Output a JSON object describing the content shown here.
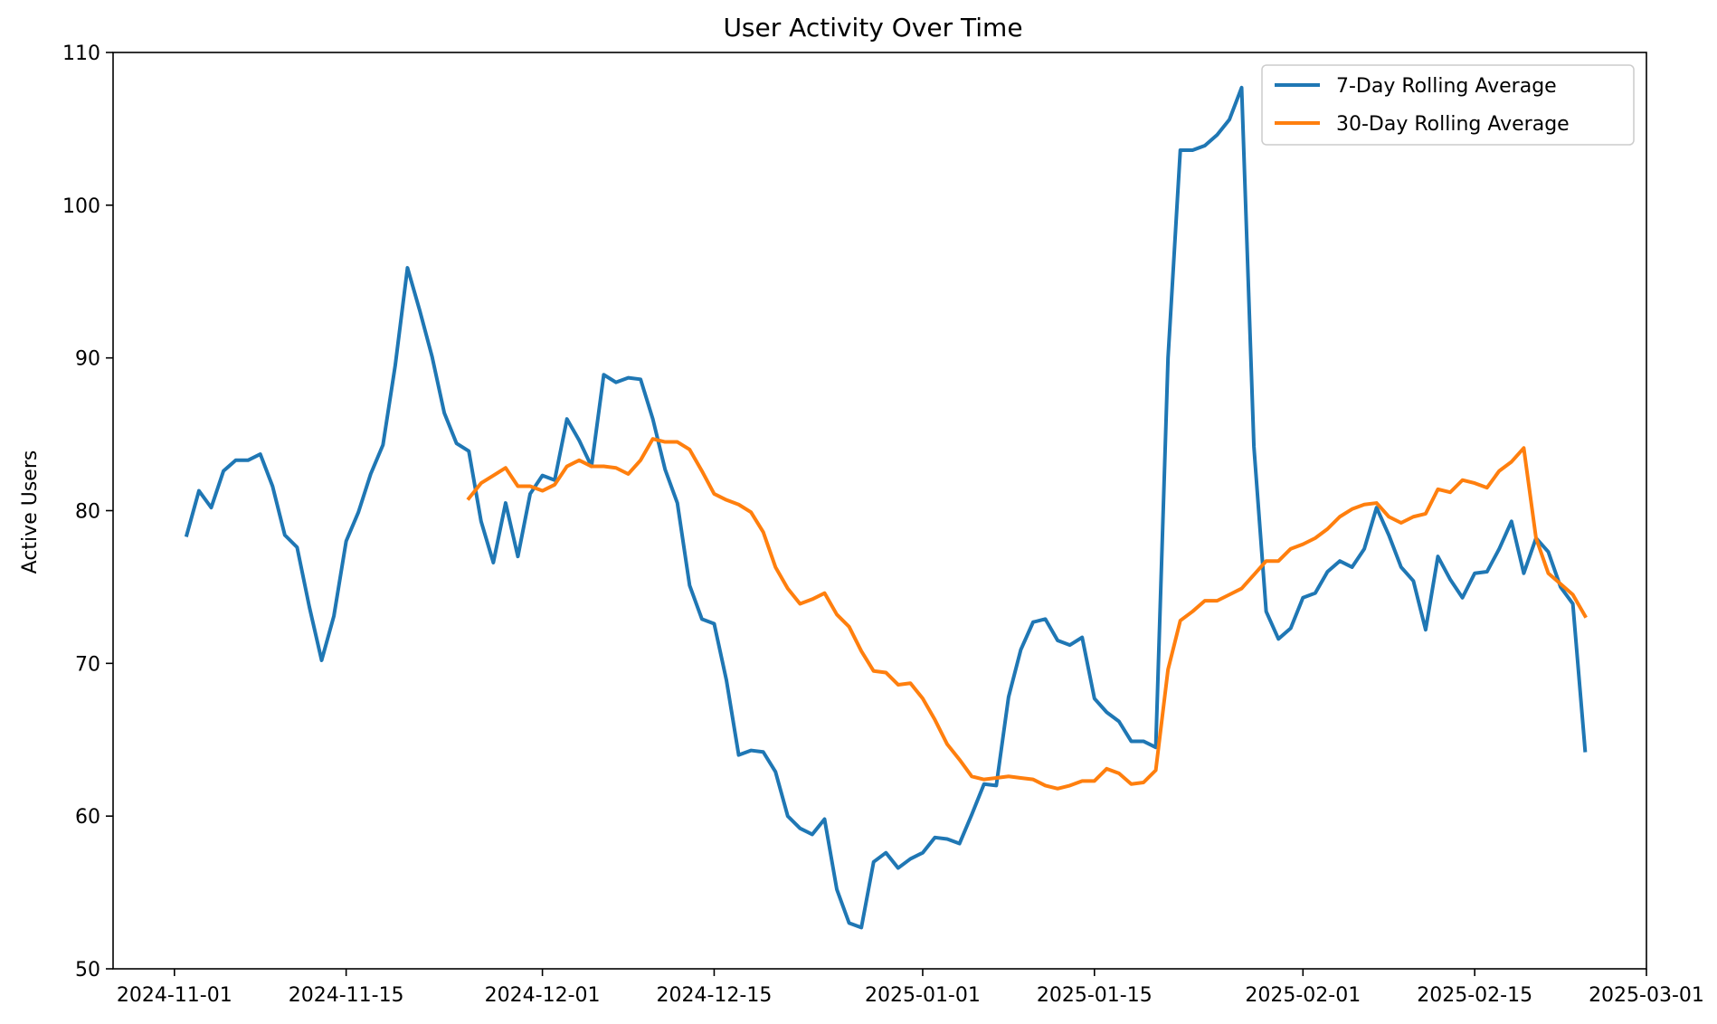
{
  "chart_data": {
    "type": "line",
    "title": "User Activity Over Time",
    "xlabel": "",
    "ylabel": "Active Users",
    "ylim": [
      50,
      110
    ],
    "xlim": [
      "2024-10-27",
      "2025-03-01"
    ],
    "yticks": [
      50,
      60,
      70,
      80,
      90,
      100,
      110
    ],
    "xticks": [
      "2024-11-01",
      "2024-11-15",
      "2024-12-01",
      "2024-12-15",
      "2025-01-01",
      "2025-01-15",
      "2025-02-01",
      "2025-02-15",
      "2025-03-01"
    ],
    "grid": false,
    "legend_position": "top-right",
    "series": [
      {
        "name": "7-Day Rolling Average",
        "color": "#1f77b4",
        "points": [
          [
            "2024-11-02",
            78.4
          ],
          [
            "2024-11-03",
            81.3
          ],
          [
            "2024-11-04",
            80.2
          ],
          [
            "2024-11-05",
            82.6
          ],
          [
            "2024-11-06",
            83.3
          ],
          [
            "2024-11-07",
            83.3
          ],
          [
            "2024-11-08",
            83.7
          ],
          [
            "2024-11-09",
            81.6
          ],
          [
            "2024-11-10",
            78.4
          ],
          [
            "2024-11-11",
            77.6
          ],
          [
            "2024-11-12",
            73.7
          ],
          [
            "2024-11-13",
            70.2
          ],
          [
            "2024-11-14",
            73.1
          ],
          [
            "2024-11-15",
            78.0
          ],
          [
            "2024-11-16",
            79.9
          ],
          [
            "2024-11-17",
            82.4
          ],
          [
            "2024-11-18",
            84.3
          ],
          [
            "2024-11-19",
            89.5
          ],
          [
            "2024-11-20",
            95.9
          ],
          [
            "2024-11-21",
            93.1
          ],
          [
            "2024-11-22",
            90.1
          ],
          [
            "2024-11-23",
            86.4
          ],
          [
            "2024-11-24",
            84.4
          ],
          [
            "2024-11-25",
            83.9
          ],
          [
            "2024-11-26",
            79.3
          ],
          [
            "2024-11-27",
            76.6
          ],
          [
            "2024-11-28",
            80.5
          ],
          [
            "2024-11-29",
            77.0
          ],
          [
            "2024-11-30",
            81.1
          ],
          [
            "2024-12-01",
            82.3
          ],
          [
            "2024-12-02",
            82.0
          ],
          [
            "2024-12-03",
            86.0
          ],
          [
            "2024-12-04",
            84.6
          ],
          [
            "2024-12-05",
            82.9
          ],
          [
            "2024-12-06",
            88.9
          ],
          [
            "2024-12-07",
            88.4
          ],
          [
            "2024-12-08",
            88.7
          ],
          [
            "2024-12-09",
            88.6
          ],
          [
            "2024-12-10",
            86.0
          ],
          [
            "2024-12-11",
            82.7
          ],
          [
            "2024-12-12",
            80.5
          ],
          [
            "2024-12-13",
            75.1
          ],
          [
            "2024-12-14",
            72.9
          ],
          [
            "2024-12-15",
            72.6
          ],
          [
            "2024-12-16",
            68.9
          ],
          [
            "2024-12-17",
            64.0
          ],
          [
            "2024-12-18",
            64.3
          ],
          [
            "2024-12-19",
            64.2
          ],
          [
            "2024-12-20",
            62.9
          ],
          [
            "2024-12-21",
            60.0
          ],
          [
            "2024-12-22",
            59.2
          ],
          [
            "2024-12-23",
            58.8
          ],
          [
            "2024-12-24",
            59.8
          ],
          [
            "2024-12-25",
            55.2
          ],
          [
            "2024-12-26",
            53.0
          ],
          [
            "2024-12-27",
            52.7
          ],
          [
            "2024-12-28",
            57.0
          ],
          [
            "2024-12-29",
            57.6
          ],
          [
            "2024-12-30",
            56.6
          ],
          [
            "2024-12-31",
            57.2
          ],
          [
            "2025-01-01",
            57.6
          ],
          [
            "2025-01-02",
            58.6
          ],
          [
            "2025-01-03",
            58.5
          ],
          [
            "2025-01-04",
            58.2
          ],
          [
            "2025-01-05",
            60.1
          ],
          [
            "2025-01-06",
            62.1
          ],
          [
            "2025-01-07",
            62.0
          ],
          [
            "2025-01-08",
            67.8
          ],
          [
            "2025-01-09",
            70.9
          ],
          [
            "2025-01-10",
            72.7
          ],
          [
            "2025-01-11",
            72.9
          ],
          [
            "2025-01-12",
            71.5
          ],
          [
            "2025-01-13",
            71.2
          ],
          [
            "2025-01-14",
            71.7
          ],
          [
            "2025-01-15",
            67.7
          ],
          [
            "2025-01-16",
            66.8
          ],
          [
            "2025-01-17",
            66.2
          ],
          [
            "2025-01-18",
            64.9
          ],
          [
            "2025-01-19",
            64.9
          ],
          [
            "2025-01-20",
            64.5
          ],
          [
            "2025-01-21",
            90.0
          ],
          [
            "2025-01-22",
            103.6
          ],
          [
            "2025-01-23",
            103.6
          ],
          [
            "2025-01-24",
            103.9
          ],
          [
            "2025-01-25",
            104.6
          ],
          [
            "2025-01-26",
            105.6
          ],
          [
            "2025-01-27",
            107.7
          ],
          [
            "2025-01-28",
            84.2
          ],
          [
            "2025-01-29",
            73.4
          ],
          [
            "2025-01-30",
            71.6
          ],
          [
            "2025-01-31",
            72.3
          ],
          [
            "2025-02-01",
            74.3
          ],
          [
            "2025-02-02",
            74.6
          ],
          [
            "2025-02-03",
            76.0
          ],
          [
            "2025-02-04",
            76.7
          ],
          [
            "2025-02-05",
            76.3
          ],
          [
            "2025-02-06",
            77.5
          ],
          [
            "2025-02-07",
            80.2
          ],
          [
            "2025-02-08",
            78.4
          ],
          [
            "2025-02-09",
            76.3
          ],
          [
            "2025-02-10",
            75.4
          ],
          [
            "2025-02-11",
            72.2
          ],
          [
            "2025-02-12",
            77.0
          ],
          [
            "2025-02-13",
            75.5
          ],
          [
            "2025-02-14",
            74.3
          ],
          [
            "2025-02-15",
            75.9
          ],
          [
            "2025-02-16",
            76.0
          ],
          [
            "2025-02-17",
            77.5
          ],
          [
            "2025-02-18",
            79.3
          ],
          [
            "2025-02-19",
            75.9
          ],
          [
            "2025-02-20",
            78.2
          ],
          [
            "2025-02-21",
            77.3
          ],
          [
            "2025-02-22",
            75.0
          ],
          [
            "2025-02-23",
            73.9
          ],
          [
            "2025-02-24",
            64.3
          ]
        ]
      },
      {
        "name": "30-Day Rolling Average",
        "color": "#ff7f0e",
        "points": [
          [
            "2024-11-25",
            80.8
          ],
          [
            "2024-11-26",
            81.8
          ],
          [
            "2024-11-27",
            82.3
          ],
          [
            "2024-11-28",
            82.8
          ],
          [
            "2024-11-29",
            81.6
          ],
          [
            "2024-11-30",
            81.6
          ],
          [
            "2024-12-01",
            81.3
          ],
          [
            "2024-12-02",
            81.7
          ],
          [
            "2024-12-03",
            82.9
          ],
          [
            "2024-12-04",
            83.3
          ],
          [
            "2024-12-05",
            82.9
          ],
          [
            "2024-12-06",
            82.9
          ],
          [
            "2024-12-07",
            82.8
          ],
          [
            "2024-12-08",
            82.4
          ],
          [
            "2024-12-09",
            83.3
          ],
          [
            "2024-12-10",
            84.7
          ],
          [
            "2024-12-11",
            84.5
          ],
          [
            "2024-12-12",
            84.5
          ],
          [
            "2024-12-13",
            84.0
          ],
          [
            "2024-12-14",
            82.6
          ],
          [
            "2024-12-15",
            81.1
          ],
          [
            "2024-12-16",
            80.7
          ],
          [
            "2024-12-17",
            80.4
          ],
          [
            "2024-12-18",
            79.9
          ],
          [
            "2024-12-19",
            78.6
          ],
          [
            "2024-12-20",
            76.3
          ],
          [
            "2024-12-21",
            74.9
          ],
          [
            "2024-12-22",
            73.9
          ],
          [
            "2024-12-23",
            74.2
          ],
          [
            "2024-12-24",
            74.6
          ],
          [
            "2024-12-25",
            73.2
          ],
          [
            "2024-12-26",
            72.4
          ],
          [
            "2024-12-27",
            70.8
          ],
          [
            "2024-12-28",
            69.5
          ],
          [
            "2024-12-29",
            69.4
          ],
          [
            "2024-12-30",
            68.6
          ],
          [
            "2024-12-31",
            68.7
          ],
          [
            "2025-01-01",
            67.7
          ],
          [
            "2025-01-02",
            66.3
          ],
          [
            "2025-01-03",
            64.7
          ],
          [
            "2025-01-04",
            63.7
          ],
          [
            "2025-01-05",
            62.6
          ],
          [
            "2025-01-06",
            62.4
          ],
          [
            "2025-01-07",
            62.5
          ],
          [
            "2025-01-08",
            62.6
          ],
          [
            "2025-01-09",
            62.5
          ],
          [
            "2025-01-10",
            62.4
          ],
          [
            "2025-01-11",
            62.0
          ],
          [
            "2025-01-12",
            61.8
          ],
          [
            "2025-01-13",
            62.0
          ],
          [
            "2025-01-14",
            62.3
          ],
          [
            "2025-01-15",
            62.3
          ],
          [
            "2025-01-16",
            63.1
          ],
          [
            "2025-01-17",
            62.8
          ],
          [
            "2025-01-18",
            62.1
          ],
          [
            "2025-01-19",
            62.2
          ],
          [
            "2025-01-20",
            63.0
          ],
          [
            "2025-01-21",
            69.6
          ],
          [
            "2025-01-22",
            72.8
          ],
          [
            "2025-01-23",
            73.4
          ],
          [
            "2025-01-24",
            74.1
          ],
          [
            "2025-01-25",
            74.1
          ],
          [
            "2025-01-26",
            74.5
          ],
          [
            "2025-01-27",
            74.9
          ],
          [
            "2025-01-28",
            75.8
          ],
          [
            "2025-01-29",
            76.7
          ],
          [
            "2025-01-30",
            76.7
          ],
          [
            "2025-01-31",
            77.5
          ],
          [
            "2025-02-01",
            77.8
          ],
          [
            "2025-02-02",
            78.2
          ],
          [
            "2025-02-03",
            78.8
          ],
          [
            "2025-02-04",
            79.6
          ],
          [
            "2025-02-05",
            80.1
          ],
          [
            "2025-02-06",
            80.4
          ],
          [
            "2025-02-07",
            80.5
          ],
          [
            "2025-02-08",
            79.6
          ],
          [
            "2025-02-09",
            79.2
          ],
          [
            "2025-02-10",
            79.6
          ],
          [
            "2025-02-11",
            79.8
          ],
          [
            "2025-02-12",
            81.4
          ],
          [
            "2025-02-13",
            81.2
          ],
          [
            "2025-02-14",
            82.0
          ],
          [
            "2025-02-15",
            81.8
          ],
          [
            "2025-02-16",
            81.5
          ],
          [
            "2025-02-17",
            82.6
          ],
          [
            "2025-02-18",
            83.2
          ],
          [
            "2025-02-19",
            84.1
          ],
          [
            "2025-02-20",
            78.2
          ],
          [
            "2025-02-21",
            75.9
          ],
          [
            "2025-02-22",
            75.2
          ],
          [
            "2025-02-23",
            74.5
          ],
          [
            "2025-02-24",
            73.1
          ]
        ]
      }
    ]
  }
}
